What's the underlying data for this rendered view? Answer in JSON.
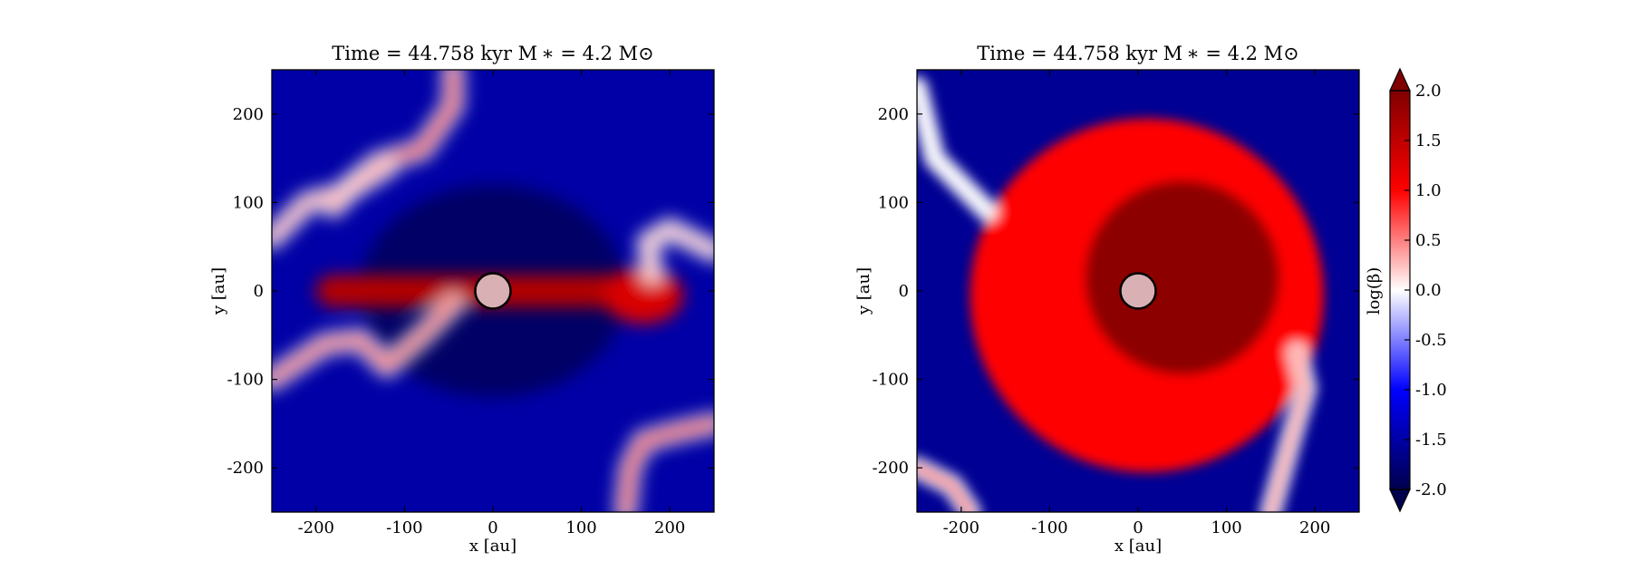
{
  "chart_data": [
    {
      "type": "heatmap",
      "title": "Time = 44.758 kyr    M$_*$ = 4.2 M$_⊙$",
      "title_text": "Time = 44.758 kyr    M ∗ = 4.2 M⊙",
      "xlabel": "x [au]",
      "ylabel": "y [au]",
      "xlim": [
        -250,
        250
      ],
      "ylim": [
        -250,
        250
      ],
      "xticks": [
        -200,
        -100,
        0,
        100,
        200
      ],
      "yticks": [
        -200,
        -100,
        0,
        100,
        200
      ],
      "xticklabels": [
        "-200",
        "-100",
        "0",
        "100",
        "200"
      ],
      "yticklabels": [
        "-200",
        "-100",
        "0",
        "100",
        "200"
      ],
      "field": "log(beta)",
      "background_value": -1.5,
      "features": [
        {
          "kind": "pseudo-disk",
          "x_range": [
            -200,
            210
          ],
          "half_thickness": 18,
          "value": 1.6
        },
        {
          "kind": "filament",
          "value": 0.8,
          "path": [
            [
              -45,
              250
            ],
            [
              -45,
              210
            ],
            [
              -80,
              160
            ],
            [
              -130,
              145
            ],
            [
              -160,
              120
            ],
            [
              -180,
              95
            ]
          ]
        },
        {
          "kind": "filament",
          "value": 0.3,
          "path": [
            [
              -250,
              60
            ],
            [
              -210,
              100
            ],
            [
              -170,
              110
            ],
            [
              -120,
              140
            ]
          ]
        },
        {
          "kind": "filament",
          "value": 0.6,
          "path": [
            [
              -250,
              -100
            ],
            [
              -190,
              -60
            ],
            [
              -150,
              -55
            ],
            [
              -120,
              -85
            ],
            [
              -80,
              -50
            ],
            [
              -45,
              -15
            ]
          ]
        },
        {
          "kind": "filament",
          "value": 0.9,
          "path": [
            [
              150,
              -250
            ],
            [
              155,
              -200
            ],
            [
              170,
              -170
            ],
            [
              205,
              -160
            ],
            [
              250,
              -150
            ]
          ]
        },
        {
          "kind": "filament",
          "value": 0.2,
          "path": [
            [
              180,
              20
            ],
            [
              175,
              55
            ],
            [
              200,
              70
            ],
            [
              250,
              45
            ]
          ]
        }
      ],
      "sink": {
        "x": 0,
        "y": 0,
        "radius": 20,
        "label": ""
      }
    },
    {
      "type": "heatmap",
      "title": "Time = 44.758 kyr    M$_*$ = 4.2 M$_⊙$",
      "title_text": "Time = 44.758 kyr    M ∗ = 4.2 M⊙",
      "xlabel": "x [au]",
      "ylabel": "y [au]",
      "xlim": [
        -250,
        250
      ],
      "ylim": [
        -250,
        250
      ],
      "xticks": [
        -200,
        -100,
        0,
        100,
        200
      ],
      "yticks": [
        -200,
        -100,
        0,
        100,
        200
      ],
      "xticklabels": [
        "-200",
        "-100",
        "0",
        "100",
        "200"
      ],
      "yticklabels": [
        "-200",
        "-100",
        "0",
        "100",
        "200"
      ],
      "field": "log(beta)",
      "background_value": -1.6,
      "features": [
        {
          "kind": "disk",
          "center": [
            10,
            -5
          ],
          "radius": 200,
          "inner_value": 1.9,
          "outer_value": 1.0
        },
        {
          "kind": "filament",
          "value": 0.4,
          "path": [
            [
              -250,
              -200
            ],
            [
              -210,
              -220
            ],
            [
              -190,
              -250
            ]
          ]
        },
        {
          "kind": "filament",
          "value": 0.3,
          "path": [
            [
              150,
              -250
            ],
            [
              175,
              -160
            ],
            [
              190,
              -110
            ],
            [
              180,
              -70
            ]
          ]
        },
        {
          "kind": "filament",
          "value": 0.0,
          "path": [
            [
              -250,
              230
            ],
            [
              -230,
              150
            ],
            [
              -170,
              90
            ]
          ]
        }
      ],
      "sink": {
        "x": 0,
        "y": 0,
        "radius": 20,
        "label": ""
      }
    }
  ],
  "colorbar": {
    "label": "log(β)",
    "label_display": "log(β)",
    "vmin": -2.0,
    "vmax": 2.0,
    "extend": "both",
    "ticks": [
      -2.0,
      -1.5,
      -1.0,
      -0.5,
      0.0,
      0.5,
      1.0,
      1.5,
      2.0
    ],
    "ticklabels": [
      "-2.0",
      "-1.5",
      "-1.0",
      "-0.5",
      "0.0",
      "0.5",
      "1.0",
      "1.5",
      "2.0"
    ],
    "colormap": "seismic",
    "colormap_stops": [
      "#00004c",
      "#0000ff",
      "#ffffff",
      "#ff0000",
      "#800000"
    ]
  },
  "sink_color": "#d9b0b3"
}
